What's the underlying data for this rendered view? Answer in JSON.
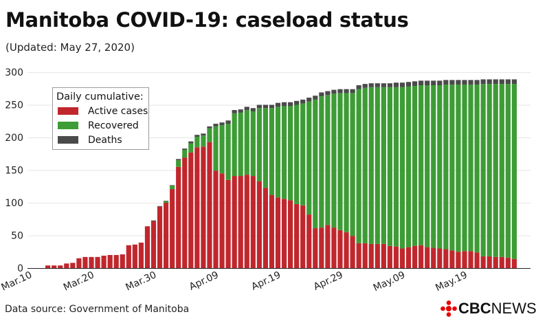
{
  "header": {
    "title": "Manitoba COVID-19: caseload status",
    "subtitle": "(Updated: May 27, 2020)"
  },
  "footer": {
    "source": "Data source: Government of Manitoba",
    "logo_text_bold": "CBC",
    "logo_text_regular": "NEWS"
  },
  "colors": {
    "active": "#c0272d",
    "recovered": "#3d9c35",
    "deaths": "#4a4a4a",
    "grid": "#e6e6e6",
    "logo": "#e60505"
  },
  "chart_data": {
    "type": "bar",
    "stacked": true,
    "legend_title": "Daily cumulative:",
    "legend_position": "top-left",
    "grid": true,
    "ylim": [
      0,
      300
    ],
    "yticks": [
      0,
      50,
      100,
      150,
      200,
      250,
      300
    ],
    "xtick_labels": [
      "Mar.10",
      "Mar.20",
      "Mar.30",
      "Apr.09",
      "Apr.19",
      "Apr.29",
      "May.09",
      "May.19"
    ],
    "xlabel": "",
    "ylabel": "",
    "start_date": "2020-03-10",
    "end_date": "2020-05-27",
    "series": [
      {
        "name": "Active cases",
        "values": [
          0,
          0,
          0,
          4,
          4,
          4,
          7,
          8,
          15,
          17,
          17,
          17,
          19,
          20,
          20,
          21,
          35,
          36,
          39,
          64,
          72,
          94,
          100,
          121,
          155,
          169,
          177,
          185,
          186,
          193,
          149,
          145,
          135,
          141,
          141,
          143,
          141,
          133,
          123,
          112,
          108,
          106,
          104,
          98,
          96,
          82,
          61,
          62,
          66,
          62,
          58,
          55,
          49,
          38,
          38,
          37,
          37,
          37,
          34,
          33,
          30,
          32,
          34,
          35,
          32,
          31,
          30,
          29,
          27,
          25,
          26,
          26,
          24,
          18,
          18,
          17,
          17,
          16,
          14
        ]
      },
      {
        "name": "Recovered",
        "values": [
          0,
          0,
          0,
          0,
          0,
          0,
          0,
          0,
          0,
          0,
          0,
          0,
          0,
          0,
          0,
          0,
          0,
          0,
          0,
          0,
          0,
          0,
          2,
          5,
          10,
          12,
          14,
          16,
          17,
          21,
          68,
          74,
          86,
          96,
          97,
          99,
          99,
          112,
          122,
          133,
          139,
          142,
          144,
          152,
          156,
          173,
          197,
          201,
          199,
          205,
          210,
          213,
          219,
          236,
          238,
          240,
          240,
          240,
          243,
          244,
          247,
          246,
          245,
          245,
          248,
          249,
          250,
          252,
          254,
          256,
          255,
          255,
          257,
          264,
          264,
          265,
          265,
          266,
          268
        ]
      },
      {
        "name": "Deaths",
        "values": [
          0,
          0,
          0,
          0,
          0,
          0,
          0,
          0,
          0,
          0,
          0,
          0,
          0,
          0,
          0,
          0,
          0,
          0,
          0,
          0,
          1,
          1,
          1,
          1,
          2,
          2,
          3,
          3,
          3,
          3,
          4,
          4,
          5,
          5,
          5,
          5,
          5,
          5,
          5,
          5,
          6,
          6,
          6,
          6,
          6,
          6,
          6,
          6,
          6,
          6,
          6,
          6,
          6,
          6,
          6,
          6,
          6,
          6,
          6,
          7,
          7,
          7,
          7,
          7,
          7,
          7,
          7,
          7,
          7,
          7,
          7,
          7,
          7,
          7,
          7,
          7,
          7,
          7,
          7
        ]
      }
    ]
  }
}
